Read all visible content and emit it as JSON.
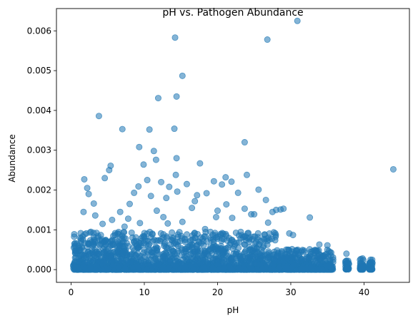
{
  "chart_data": {
    "type": "scatter",
    "title": "pH vs. Pathogen Abundance",
    "xlabel": "pH",
    "ylabel": "Abundance",
    "xlim": [
      -2,
      46.2
    ],
    "ylim": [
      -0.00032,
      0.00656
    ],
    "xticks": [
      0,
      10,
      20,
      30,
      40
    ],
    "xtick_labels": [
      "0",
      "10",
      "20",
      "30",
      "40"
    ],
    "yticks": [
      0.0,
      0.001,
      0.002,
      0.003,
      0.004,
      0.005,
      0.006
    ],
    "ytick_labels": [
      "0.000",
      "0.001",
      "0.002",
      "0.003",
      "0.004",
      "0.005",
      "0.006"
    ],
    "grid": false,
    "marker_color": "#1f77b4",
    "marker_alpha": 0.55,
    "series": [
      {
        "name": "",
        "points": [
          [
            30.9,
            0.00625
          ],
          [
            14.2,
            0.00583
          ],
          [
            26.8,
            0.00578
          ],
          [
            15.2,
            0.00487
          ],
          [
            14.4,
            0.00435
          ],
          [
            11.9,
            0.00431
          ],
          [
            3.8,
            0.00386
          ],
          [
            7.0,
            0.00353
          ],
          [
            10.7,
            0.00352
          ],
          [
            14.1,
            0.00354
          ],
          [
            23.7,
            0.0032
          ],
          [
            9.3,
            0.00308
          ],
          [
            11.3,
            0.00298
          ],
          [
            14.4,
            0.0028
          ],
          [
            11.6,
            0.00276
          ],
          [
            9.9,
            0.00264
          ],
          [
            17.6,
            0.00267
          ],
          [
            5.4,
            0.00261
          ],
          [
            5.2,
            0.0025
          ],
          [
            44.0,
            0.00252
          ],
          [
            14.3,
            0.00238
          ],
          [
            24.0,
            0.00238
          ],
          [
            4.6,
            0.0023
          ],
          [
            1.8,
            0.00227
          ],
          [
            12.3,
            0.0022
          ],
          [
            19.5,
            0.00222
          ],
          [
            21.1,
            0.00232
          ],
          [
            20.6,
            0.00214
          ],
          [
            2.2,
            0.00205
          ],
          [
            15.8,
            0.00215
          ],
          [
            25.6,
            0.00201
          ],
          [
            13.4,
            0.00208
          ],
          [
            10.4,
            0.00225
          ],
          [
            21.9,
            0.00221
          ],
          [
            14.5,
            0.00196
          ],
          [
            9.2,
            0.00209
          ],
          [
            2.4,
            0.0019
          ],
          [
            8.6,
            0.00193
          ],
          [
            18.5,
            0.00192
          ],
          [
            17.2,
            0.00187
          ],
          [
            22.8,
            0.00193
          ],
          [
            26.6,
            0.00175
          ],
          [
            3.1,
            0.00166
          ],
          [
            8.0,
            0.00165
          ],
          [
            21.2,
            0.00164
          ],
          [
            10.9,
            0.00185
          ],
          [
            13.0,
            0.0018
          ],
          [
            16.9,
            0.00172
          ],
          [
            24.6,
            0.00139
          ],
          [
            25.0,
            0.00139
          ],
          [
            28.6,
            0.00151
          ],
          [
            28.0,
            0.0015
          ],
          [
            27.5,
            0.00145
          ],
          [
            29.0,
            0.00153
          ],
          [
            23.7,
            0.00153
          ],
          [
            6.7,
            0.00145
          ],
          [
            1.7,
            0.00145
          ],
          [
            12.6,
            0.00132
          ],
          [
            15.2,
            0.0012
          ],
          [
            7.8,
            0.00128
          ],
          [
            19.8,
            0.00132
          ],
          [
            32.6,
            0.00131
          ],
          [
            5.6,
            0.00125
          ],
          [
            4.3,
            0.00115
          ],
          [
            9.4,
            0.00117
          ],
          [
            13.2,
            0.00116
          ],
          [
            3.3,
            0.00136
          ],
          [
            29.8,
            0.00091
          ],
          [
            30.3,
            0.00087
          ],
          [
            1.2,
            0.0008
          ],
          [
            33.9,
            0.00063
          ],
          [
            35.0,
            0.00061
          ],
          [
            11.7,
            0.00148
          ],
          [
            16.5,
            0.00155
          ],
          [
            22.0,
            0.0013
          ],
          [
            26.9,
            0.00118
          ],
          [
            18.3,
            0.00102
          ],
          [
            2.7,
            0.00095
          ],
          [
            7.3,
            0.00108
          ],
          [
            20.0,
            0.00148
          ],
          [
            0.5,
            0.00058
          ],
          [
            37.6,
            0.0004
          ],
          [
            39.8,
            0.00028
          ],
          [
            40.9,
            0.00025
          ]
        ]
      }
    ]
  }
}
